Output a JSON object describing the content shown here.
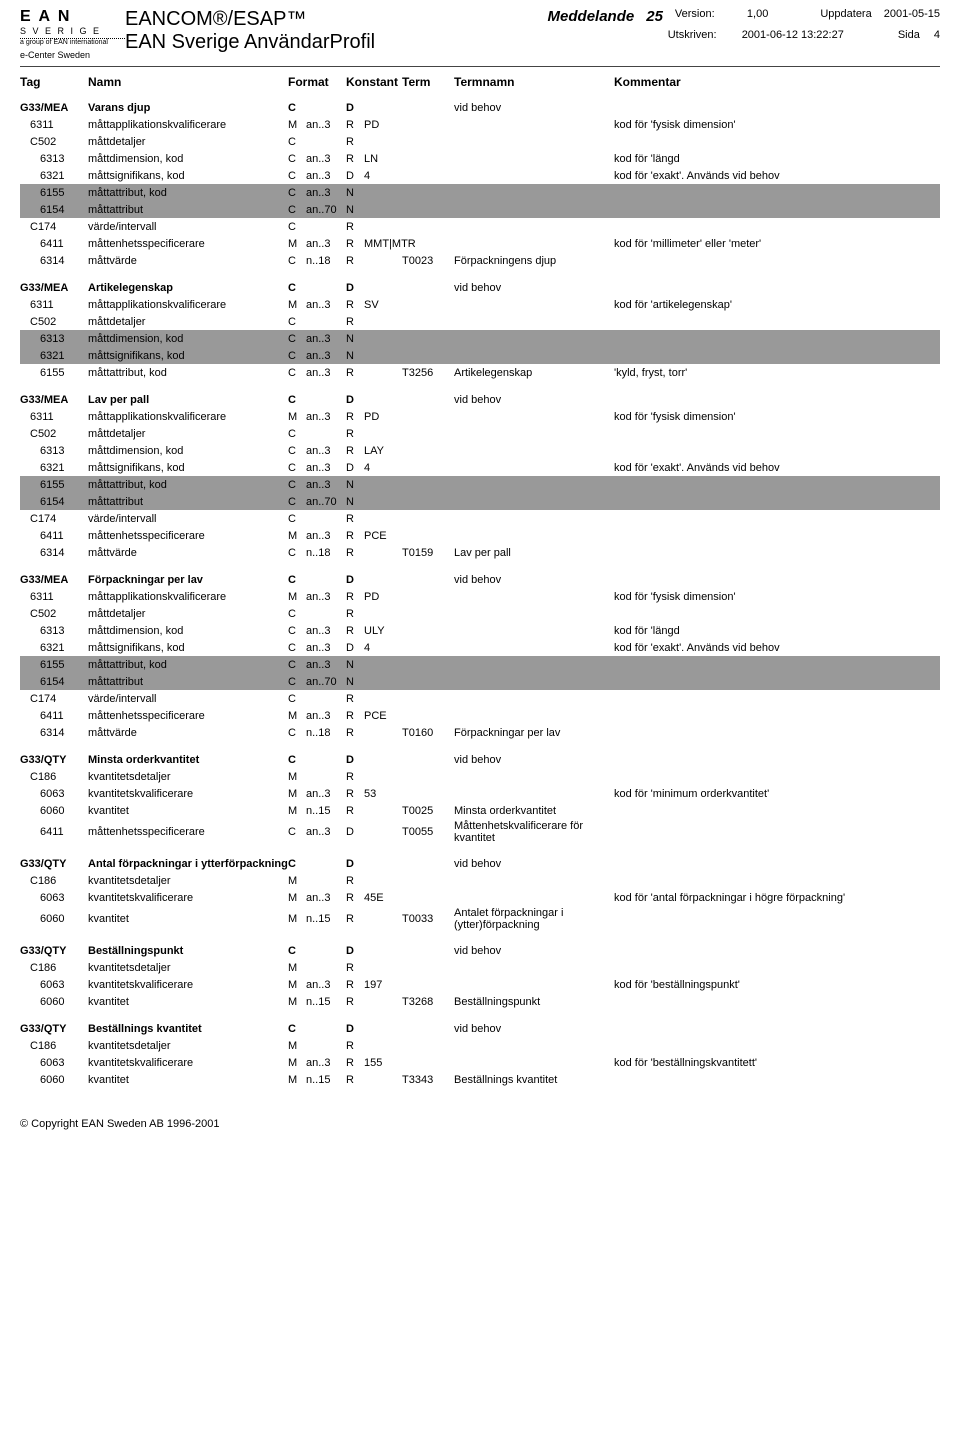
{
  "header": {
    "logo_main": "E A N",
    "logo_sub": "S V E R I G E",
    "logo_line": "a group of EAN international",
    "logo_caption": "e-Center Sweden",
    "title_main": "EANCOM®/ESAP™",
    "title_sub": "EAN Sverige AnvändarProfil",
    "medd_label": "Meddelande",
    "medd_num": "25",
    "version_label": "Version:",
    "version": "1,00",
    "uppd_label": "Uppdatera",
    "uppd_date": "2001-05-15",
    "utskriven_label": "Utskriven:",
    "utskriven": "2001-06-12 13:22:27",
    "sida_label": "Sida",
    "sida_num": "4"
  },
  "cols": {
    "tag": "Tag",
    "namn": "Namn",
    "format": "Format",
    "konstant": "Konstant",
    "term": "Term",
    "termnamn": "Termnamn",
    "kommentar": "Kommentar"
  },
  "rows": [
    {
      "cls": "group",
      "tag": "G33/MEA",
      "namn": "Varans djup",
      "mc": "C",
      "fmt": "",
      "k": "D",
      "val": "",
      "term": "",
      "termn": "vid behov",
      "komm": ""
    },
    {
      "cls": "lvl1",
      "tag": "6311",
      "namn": "måttapplikationskvalificerare",
      "mc": "M",
      "fmt": "an..3",
      "k": "R",
      "val": "PD",
      "term": "",
      "termn": "",
      "komm": "kod för 'fysisk dimension'"
    },
    {
      "cls": "lvl1",
      "tag": "C502",
      "namn": "måttdetaljer",
      "mc": "C",
      "fmt": "",
      "k": "R",
      "val": "",
      "term": "",
      "termn": "",
      "komm": ""
    },
    {
      "cls": "lvl2",
      "tag": "6313",
      "namn": "måttdimension, kod",
      "mc": "C",
      "fmt": "an..3",
      "k": "R",
      "val": "LN",
      "term": "",
      "termn": "",
      "komm": "kod för 'längd"
    },
    {
      "cls": "lvl2",
      "tag": "6321",
      "namn": "måttsignifikans, kod",
      "mc": "C",
      "fmt": "an..3",
      "k": "D",
      "val": "4",
      "term": "",
      "termn": "",
      "komm": "kod för 'exakt'. Används vid behov"
    },
    {
      "cls": "lvl2 shaded",
      "tag": "6155",
      "namn": "måttattribut, kod",
      "mc": "C",
      "fmt": "an..3",
      "k": "N",
      "val": "",
      "term": "",
      "termn": "",
      "komm": ""
    },
    {
      "cls": "lvl2 shaded",
      "tag": "6154",
      "namn": "måttattribut",
      "mc": "C",
      "fmt": "an..70",
      "k": "N",
      "val": "",
      "term": "",
      "termn": "",
      "komm": ""
    },
    {
      "cls": "lvl1",
      "tag": "C174",
      "namn": "värde/intervall",
      "mc": "C",
      "fmt": "",
      "k": "R",
      "val": "",
      "term": "",
      "termn": "",
      "komm": ""
    },
    {
      "cls": "lvl2",
      "tag": "6411",
      "namn": "måttenhetsspecificerare",
      "mc": "M",
      "fmt": "an..3",
      "k": "R",
      "val": "MMT|MTR",
      "term": "",
      "termn": "",
      "komm": "kod för 'millimeter' eller 'meter'"
    },
    {
      "cls": "lvl2",
      "tag": "6314",
      "namn": "måttvärde",
      "mc": "C",
      "fmt": "n..18",
      "k": "R",
      "val": "",
      "term": "T0023",
      "termn": "Förpackningens djup",
      "komm": ""
    },
    {
      "cls": "spacer"
    },
    {
      "cls": "group",
      "tag": "G33/MEA",
      "namn": "Artikelegenskap",
      "mc": "C",
      "fmt": "",
      "k": "D",
      "val": "",
      "term": "",
      "termn": "vid behov",
      "komm": ""
    },
    {
      "cls": "lvl1",
      "tag": "6311",
      "namn": "måttapplikationskvalificerare",
      "mc": "M",
      "fmt": "an..3",
      "k": "R",
      "val": "SV",
      "term": "",
      "termn": "",
      "komm": "kod för 'artikelegenskap'"
    },
    {
      "cls": "lvl1",
      "tag": "C502",
      "namn": "måttdetaljer",
      "mc": "C",
      "fmt": "",
      "k": "R",
      "val": "",
      "term": "",
      "termn": "",
      "komm": ""
    },
    {
      "cls": "lvl2 shaded",
      "tag": "6313",
      "namn": "måttdimension, kod",
      "mc": "C",
      "fmt": "an..3",
      "k": "N",
      "val": "",
      "term": "",
      "termn": "",
      "komm": ""
    },
    {
      "cls": "lvl2 shaded",
      "tag": "6321",
      "namn": "måttsignifikans, kod",
      "mc": "C",
      "fmt": "an..3",
      "k": "N",
      "val": "",
      "term": "",
      "termn": "",
      "komm": ""
    },
    {
      "cls": "lvl2",
      "tag": "6155",
      "namn": "måttattribut, kod",
      "mc": "C",
      "fmt": "an..3",
      "k": "R",
      "val": "",
      "term": "T3256",
      "termn": "Artikelegenskap",
      "komm": "'kyld, fryst, torr'"
    },
    {
      "cls": "spacer"
    },
    {
      "cls": "group",
      "tag": "G33/MEA",
      "namn": "Lav per pall",
      "mc": "C",
      "fmt": "",
      "k": "D",
      "val": "",
      "term": "",
      "termn": "vid behov",
      "komm": ""
    },
    {
      "cls": "lvl1",
      "tag": "6311",
      "namn": "måttapplikationskvalificerare",
      "mc": "M",
      "fmt": "an..3",
      "k": "R",
      "val": "PD",
      "term": "",
      "termn": "",
      "komm": "kod för 'fysisk dimension'"
    },
    {
      "cls": "lvl1",
      "tag": "C502",
      "namn": "måttdetaljer",
      "mc": "C",
      "fmt": "",
      "k": "R",
      "val": "",
      "term": "",
      "termn": "",
      "komm": ""
    },
    {
      "cls": "lvl2",
      "tag": "6313",
      "namn": "måttdimension, kod",
      "mc": "C",
      "fmt": "an..3",
      "k": "R",
      "val": "LAY",
      "term": "",
      "termn": "",
      "komm": ""
    },
    {
      "cls": "lvl2",
      "tag": "6321",
      "namn": "måttsignifikans, kod",
      "mc": "C",
      "fmt": "an..3",
      "k": "D",
      "val": "4",
      "term": "",
      "termn": "",
      "komm": "kod för 'exakt'. Används vid behov"
    },
    {
      "cls": "lvl2 shaded",
      "tag": "6155",
      "namn": "måttattribut, kod",
      "mc": "C",
      "fmt": "an..3",
      "k": "N",
      "val": "",
      "term": "",
      "termn": "",
      "komm": ""
    },
    {
      "cls": "lvl2 shaded",
      "tag": "6154",
      "namn": "måttattribut",
      "mc": "C",
      "fmt": "an..70",
      "k": "N",
      "val": "",
      "term": "",
      "termn": "",
      "komm": ""
    },
    {
      "cls": "lvl1",
      "tag": "C174",
      "namn": "värde/intervall",
      "mc": "C",
      "fmt": "",
      "k": "R",
      "val": "",
      "term": "",
      "termn": "",
      "komm": ""
    },
    {
      "cls": "lvl2",
      "tag": "6411",
      "namn": "måttenhetsspecificerare",
      "mc": "M",
      "fmt": "an..3",
      "k": "R",
      "val": "PCE",
      "term": "",
      "termn": "",
      "komm": ""
    },
    {
      "cls": "lvl2",
      "tag": "6314",
      "namn": "måttvärde",
      "mc": "C",
      "fmt": "n..18",
      "k": "R",
      "val": "",
      "term": "T0159",
      "termn": "Lav per pall",
      "komm": ""
    },
    {
      "cls": "spacer"
    },
    {
      "cls": "group",
      "tag": "G33/MEA",
      "namn": "Förpackningar per lav",
      "mc": "C",
      "fmt": "",
      "k": "D",
      "val": "",
      "term": "",
      "termn": "vid behov",
      "komm": ""
    },
    {
      "cls": "lvl1",
      "tag": "6311",
      "namn": "måttapplikationskvalificerare",
      "mc": "M",
      "fmt": "an..3",
      "k": "R",
      "val": "PD",
      "term": "",
      "termn": "",
      "komm": "kod för 'fysisk dimension'"
    },
    {
      "cls": "lvl1",
      "tag": "C502",
      "namn": "måttdetaljer",
      "mc": "C",
      "fmt": "",
      "k": "R",
      "val": "",
      "term": "",
      "termn": "",
      "komm": ""
    },
    {
      "cls": "lvl2",
      "tag": "6313",
      "namn": "måttdimension, kod",
      "mc": "C",
      "fmt": "an..3",
      "k": "R",
      "val": "ULY",
      "term": "",
      "termn": "",
      "komm": "kod för 'längd"
    },
    {
      "cls": "lvl2",
      "tag": "6321",
      "namn": "måttsignifikans, kod",
      "mc": "C",
      "fmt": "an..3",
      "k": "D",
      "val": "4",
      "term": "",
      "termn": "",
      "komm": "kod för 'exakt'. Används vid behov"
    },
    {
      "cls": "lvl2 shaded",
      "tag": "6155",
      "namn": "måttattribut, kod",
      "mc": "C",
      "fmt": "an..3",
      "k": "N",
      "val": "",
      "term": "",
      "termn": "",
      "komm": ""
    },
    {
      "cls": "lvl2 shaded",
      "tag": "6154",
      "namn": "måttattribut",
      "mc": "C",
      "fmt": "an..70",
      "k": "N",
      "val": "",
      "term": "",
      "termn": "",
      "komm": ""
    },
    {
      "cls": "lvl1",
      "tag": "C174",
      "namn": "värde/intervall",
      "mc": "C",
      "fmt": "",
      "k": "R",
      "val": "",
      "term": "",
      "termn": "",
      "komm": ""
    },
    {
      "cls": "lvl2",
      "tag": "6411",
      "namn": "måttenhetsspecificerare",
      "mc": "M",
      "fmt": "an..3",
      "k": "R",
      "val": "PCE",
      "term": "",
      "termn": "",
      "komm": ""
    },
    {
      "cls": "lvl2",
      "tag": "6314",
      "namn": "måttvärde",
      "mc": "C",
      "fmt": "n..18",
      "k": "R",
      "val": "",
      "term": "T0160",
      "termn": "Förpackningar per lav",
      "komm": ""
    },
    {
      "cls": "spacer"
    },
    {
      "cls": "group",
      "tag": "G33/QTY",
      "namn": "Minsta orderkvantitet",
      "mc": "C",
      "fmt": "",
      "k": "D",
      "val": "",
      "term": "",
      "termn": "vid behov",
      "komm": ""
    },
    {
      "cls": "lvl1",
      "tag": "C186",
      "namn": "kvantitetsdetaljer",
      "mc": "M",
      "fmt": "",
      "k": "R",
      "val": "",
      "term": "",
      "termn": "",
      "komm": ""
    },
    {
      "cls": "lvl2",
      "tag": "6063",
      "namn": "kvantitetskvalificerare",
      "mc": "M",
      "fmt": "an..3",
      "k": "R",
      "val": "53",
      "term": "",
      "termn": "",
      "komm": "kod för 'minimum orderkvantitet'"
    },
    {
      "cls": "lvl2",
      "tag": "6060",
      "namn": "kvantitet",
      "mc": "M",
      "fmt": "n..15",
      "k": "R",
      "val": "",
      "term": "T0025",
      "termn": "Minsta orderkvantitet",
      "komm": ""
    },
    {
      "cls": "lvl2",
      "tag": "6411",
      "namn": "måttenhetsspecificerare",
      "mc": "C",
      "fmt": "an..3",
      "k": "D",
      "val": "",
      "term": "T0055",
      "termn": "Måttenhetskvalificerare för kvantitet",
      "komm": ""
    },
    {
      "cls": "spacer"
    },
    {
      "cls": "group",
      "tag": "G33/QTY",
      "namn": "Antal förpackningar i ytterförpackning",
      "mc": "C",
      "fmt": "",
      "k": "D",
      "val": "",
      "term": "",
      "termn": "vid behov",
      "komm": ""
    },
    {
      "cls": "lvl1",
      "tag": "C186",
      "namn": "kvantitetsdetaljer",
      "mc": "M",
      "fmt": "",
      "k": "R",
      "val": "",
      "term": "",
      "termn": "",
      "komm": ""
    },
    {
      "cls": "lvl2",
      "tag": "6063",
      "namn": "kvantitetskvalificerare",
      "mc": "M",
      "fmt": "an..3",
      "k": "R",
      "val": "45E",
      "term": "",
      "termn": "",
      "komm": "kod för 'antal förpackningar i högre förpackning'"
    },
    {
      "cls": "lvl2",
      "tag": "6060",
      "namn": "kvantitet",
      "mc": "M",
      "fmt": "n..15",
      "k": "R",
      "val": "",
      "term": "T0033",
      "termn": "Antalet förpackningar i (ytter)förpackning",
      "komm": ""
    },
    {
      "cls": "spacer"
    },
    {
      "cls": "group",
      "tag": "G33/QTY",
      "namn": "Beställningspunkt",
      "mc": "C",
      "fmt": "",
      "k": "D",
      "val": "",
      "term": "",
      "termn": "vid behov",
      "komm": ""
    },
    {
      "cls": "lvl1",
      "tag": "C186",
      "namn": "kvantitetsdetaljer",
      "mc": "M",
      "fmt": "",
      "k": "R",
      "val": "",
      "term": "",
      "termn": "",
      "komm": ""
    },
    {
      "cls": "lvl2",
      "tag": "6063",
      "namn": "kvantitetskvalificerare",
      "mc": "M",
      "fmt": "an..3",
      "k": "R",
      "val": "197",
      "term": "",
      "termn": "",
      "komm": "kod för 'beställningspunkt'"
    },
    {
      "cls": "lvl2",
      "tag": "6060",
      "namn": "kvantitet",
      "mc": "M",
      "fmt": "n..15",
      "k": "R",
      "val": "",
      "term": "T3268",
      "termn": "Beställningspunkt",
      "komm": ""
    },
    {
      "cls": "spacer"
    },
    {
      "cls": "group",
      "tag": "G33/QTY",
      "namn": "Beställnings kvantitet",
      "mc": "C",
      "fmt": "",
      "k": "D",
      "val": "",
      "term": "",
      "termn": "vid behov",
      "komm": ""
    },
    {
      "cls": "lvl1",
      "tag": "C186",
      "namn": "kvantitetsdetaljer",
      "mc": "M",
      "fmt": "",
      "k": "R",
      "val": "",
      "term": "",
      "termn": "",
      "komm": ""
    },
    {
      "cls": "lvl2",
      "tag": "6063",
      "namn": "kvantitetskvalificerare",
      "mc": "M",
      "fmt": "an..3",
      "k": "R",
      "val": "155",
      "term": "",
      "termn": "",
      "komm": "kod för 'beställningskvantitett'"
    },
    {
      "cls": "lvl2",
      "tag": "6060",
      "namn": "kvantitet",
      "mc": "M",
      "fmt": "n..15",
      "k": "R",
      "val": "",
      "term": "T3343",
      "termn": "Beställnings kvantitet",
      "komm": ""
    }
  ],
  "footer": "© Copyright EAN Sweden AB 1996-2001"
}
